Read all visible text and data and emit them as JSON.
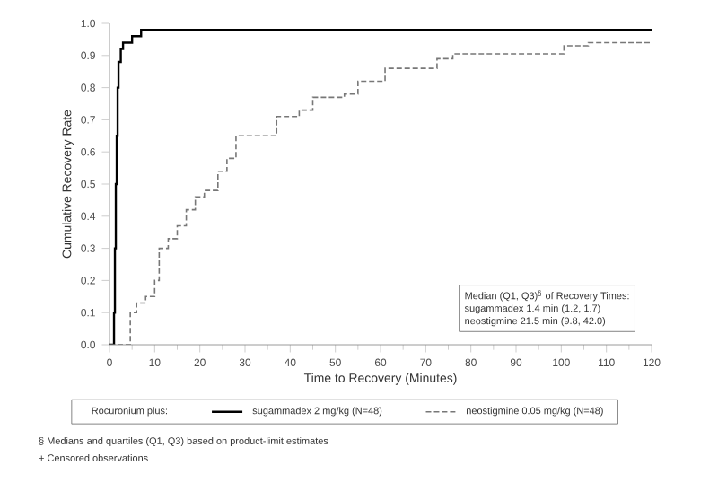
{
  "chart_data": {
    "type": "step",
    "xlabel": "Time to Recovery (Minutes)",
    "ylabel": "Cumulative Recovery Rate",
    "legend_title": "Rocuronium plus:",
    "legend": "bottom",
    "series": [
      {
        "name": "sugammadex 2 mg/kg (N=48)",
        "color": "#000000",
        "line_style": "solid",
        "x": [
          0,
          0.8,
          1.0,
          1.2,
          1.4,
          1.6,
          1.8,
          2.0,
          2.5,
          3,
          5,
          7,
          120
        ],
        "values": [
          0,
          0,
          0.1,
          0.3,
          0.5,
          0.65,
          0.8,
          0.88,
          0.92,
          0.94,
          0.96,
          0.98,
          0.98
        ]
      },
      {
        "name": "neostigmine 0.05 mg/kg (N=48)",
        "color": "#777777",
        "line_style": "dashed",
        "x": [
          0,
          3.3,
          4.6,
          6,
          8,
          10,
          11,
          13,
          15,
          17,
          19,
          21,
          24,
          26,
          28,
          35,
          37,
          42,
          45,
          52,
          55,
          61,
          72.5,
          76,
          100.6,
          106,
          120
        ],
        "values": [
          0,
          0,
          0.1,
          0.13,
          0.15,
          0.2,
          0.3,
          0.33,
          0.37,
          0.42,
          0.46,
          0.48,
          0.54,
          0.58,
          0.65,
          0.65,
          0.71,
          0.73,
          0.77,
          0.78,
          0.82,
          0.86,
          0.89,
          0.905,
          0.93,
          0.94,
          0.94
        ]
      }
    ],
    "xlim": [
      0,
      120
    ],
    "xticks": [
      0,
      10,
      20,
      30,
      40,
      50,
      60,
      70,
      80,
      90,
      100,
      110,
      120
    ],
    "ylim": [
      0,
      1
    ],
    "yticks": [
      {
        "value": 0,
        "label": "0.0"
      },
      {
        "value": 0.1,
        "label": "0.1"
      },
      {
        "value": 0.2,
        "label": "0.2"
      },
      {
        "value": 0.3,
        "label": "0.3"
      },
      {
        "value": 0.4,
        "label": "0.4"
      },
      {
        "value": 0.5,
        "label": "0.5"
      },
      {
        "value": 0.6,
        "label": "0.6"
      },
      {
        "value": 0.7,
        "label": "0.7"
      },
      {
        "value": 0.8,
        "label": "0.8"
      },
      {
        "value": 0.9,
        "label": "0.9"
      },
      {
        "value": 1,
        "label": "1.0"
      }
    ],
    "annotations": [
      "Median (Q1, Q3)$^{§}$ of Recovery Times:",
      "sugammadex 1.4 min (1.2, 1.7)",
      "neostigmine 21.5 min (9.8, 42.0)",
      "§ Medians and quartiles (Q1, Q3) based on product-limit estimates",
      "+ Censored observations"
    ]
  }
}
